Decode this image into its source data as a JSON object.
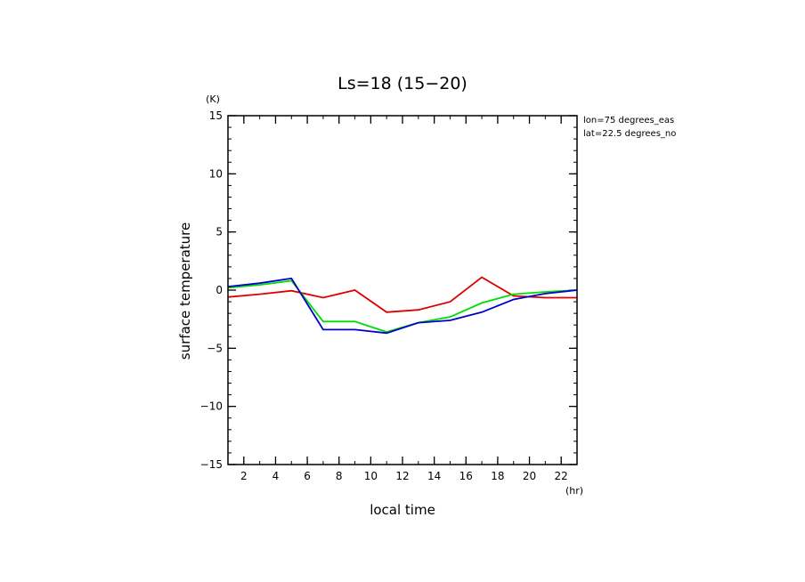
{
  "chart_data": {
    "type": "line",
    "title": "Ls=18 (15−20)",
    "xlabel": "local time",
    "ylabel": "surface temperature",
    "x_unit": "(hr)",
    "y_unit": "(K)",
    "xlim": [
      1,
      23
    ],
    "ylim": [
      -15,
      15
    ],
    "xticks": [
      2,
      4,
      6,
      8,
      10,
      12,
      14,
      16,
      18,
      20,
      22
    ],
    "xtick_labels": [
      "2",
      "4",
      "6",
      "8",
      "10",
      "12",
      "14",
      "16",
      "18",
      "20",
      "22"
    ],
    "yticks": [
      15,
      10,
      5,
      0,
      -5,
      -10,
      -15
    ],
    "ytick_labels": [
      "15",
      "10",
      "5",
      "0",
      "−5",
      "−10",
      "−15"
    ],
    "annotations": [
      "lon=75 degrees_eas",
      "lat=22.5 degrees_no"
    ],
    "grid": false,
    "legend": "none",
    "x": [
      1,
      3,
      5,
      7,
      9,
      11,
      13,
      15,
      17,
      19,
      21,
      23
    ],
    "series": [
      {
        "color": "#dd0000",
        "values": [
          -0.6,
          -0.35,
          -0.05,
          -0.65,
          0.0,
          -1.9,
          -1.7,
          -1.0,
          1.1,
          -0.5,
          -0.65,
          -0.65
        ]
      },
      {
        "color": "#00dd00",
        "values": [
          0.2,
          0.45,
          0.8,
          -2.7,
          -2.7,
          -3.6,
          -2.8,
          -2.3,
          -1.1,
          -0.35,
          -0.15,
          0.0
        ]
      },
      {
        "color": "#0000cc",
        "values": [
          0.3,
          0.6,
          1.0,
          -3.4,
          -3.4,
          -3.7,
          -2.8,
          -2.6,
          -1.9,
          -0.8,
          -0.3,
          0.0
        ]
      }
    ]
  }
}
